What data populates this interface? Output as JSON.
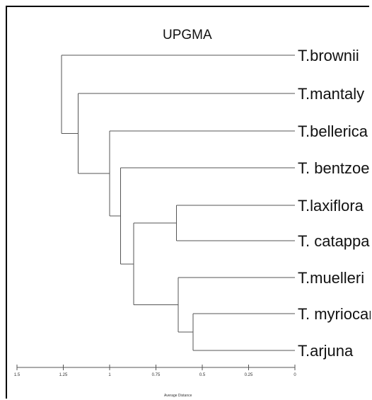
{
  "title": "UPGMA",
  "axis": {
    "label": "Average Distance",
    "ticks": [
      {
        "value": 1.5,
        "label": "1.5"
      },
      {
        "value": 1.25,
        "label": "1.25"
      },
      {
        "value": 1.0,
        "label": "1"
      },
      {
        "value": 0.75,
        "label": "0.75"
      },
      {
        "value": 0.5,
        "label": "0.5"
      },
      {
        "value": 0.25,
        "label": "0.25"
      },
      {
        "value": 0.0,
        "label": "0"
      }
    ]
  },
  "taxa": [
    "T.brownii",
    "T.mantaly",
    "T.bellerica",
    "T. bentzoe",
    "T.laxiflora",
    "T. catappa",
    "T.muelleri",
    "T. myriocarpa",
    "T.arjuna"
  ],
  "chart_data": {
    "type": "dendrogram",
    "method": "UPGMA",
    "xlabel": "Average Distance",
    "xlim": [
      1.5,
      0
    ],
    "merges": [
      {
        "children": [
          "T. myriocarpa",
          "T.arjuna"
        ],
        "height": 0.55
      },
      {
        "children": [
          "T.laxiflora",
          "T. catappa"
        ],
        "height": 0.64
      },
      {
        "children": [
          "T.muelleri",
          "(T. myriocarpa, T.arjuna)"
        ],
        "height": 0.63
      },
      {
        "children": [
          "(T.laxiflora, T. catappa)",
          "(T.muelleri, (T. myriocarpa, T.arjuna))"
        ],
        "height": 0.87
      },
      {
        "children": [
          "T. bentzoe",
          "((T.laxiflora, T. catappa), (T.muelleri, (T. myriocarpa, T.arjuna)))"
        ],
        "height": 0.94
      },
      {
        "children": [
          "T.bellerica",
          "(T. bentzoe, ...)"
        ],
        "height": 1.0
      },
      {
        "children": [
          "T.mantaly",
          "(T.bellerica, ...)"
        ],
        "height": 1.17
      },
      {
        "children": [
          "T.brownii",
          "(T.mantaly, ...)"
        ],
        "height": 1.26
      }
    ]
  }
}
